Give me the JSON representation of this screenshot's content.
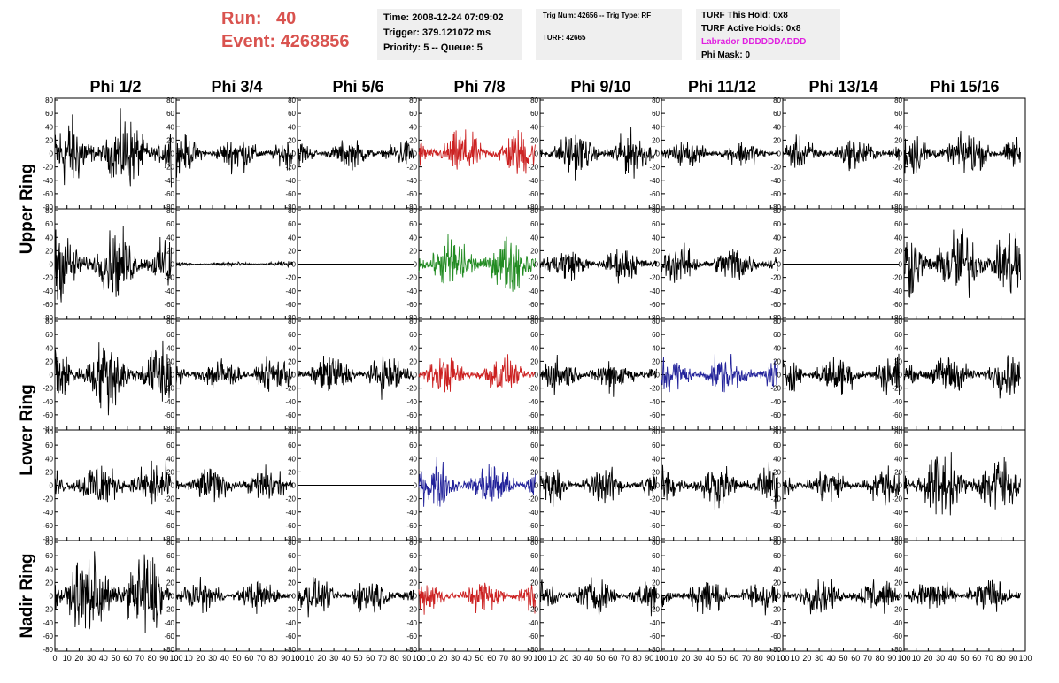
{
  "run": {
    "label": "Run:",
    "value": "40"
  },
  "event": {
    "label": "Event:",
    "value": "4268856"
  },
  "time_box": {
    "time": "Time: 2008-12-24 07:09:02",
    "trigger": "Trigger: 379.121072 ms",
    "priority": "Priority: 5 -- Queue: 5"
  },
  "trig_box": {
    "trig": "Trig Num: 42656 -- Trig Type: RF",
    "turf": "TURF: 42665"
  },
  "turf_box": {
    "this_hold": "TURF This Hold: 0x8",
    "active_holds": "TURF Active Holds: 0x8",
    "labrador": "Labrador DDDDDDADDD",
    "phi_mask": "Phi Mask: 0"
  },
  "colors": {
    "header_red": "#d9534f",
    "magenta": "#e020e0",
    "panel_bg": "#efefef"
  },
  "chart_data": {
    "type": "line",
    "columns": [
      "Phi 1/2",
      "Phi 3/4",
      "Phi 5/6",
      "Phi 7/8",
      "Phi 9/10",
      "Phi 11/12",
      "Phi 13/14",
      "Phi 15/16"
    ],
    "ring_labels": [
      {
        "label": "Upper Ring",
        "rows": [
          0,
          1
        ]
      },
      {
        "label": "Lower Ring",
        "rows": [
          2,
          3
        ]
      },
      {
        "label": "Nadir Ring",
        "rows": [
          4
        ]
      }
    ],
    "ylim": [
      -80,
      80
    ],
    "yticks": [
      -80,
      -60,
      -40,
      -20,
      0,
      20,
      40,
      60,
      80
    ],
    "xlim": [
      0,
      100
    ],
    "xticks": [
      0,
      10,
      20,
      30,
      40,
      50,
      60,
      70,
      80,
      90,
      100
    ],
    "waveform_x_range": [
      0,
      96
    ],
    "rows": [
      [
        {
          "color": "#000000",
          "amp": 28
        },
        {
          "color": "#000000",
          "amp": 14
        },
        {
          "color": "#000000",
          "amp": 11
        },
        {
          "color": "#cc2222",
          "amp": 18
        },
        {
          "color": "#000000",
          "amp": 17
        },
        {
          "color": "#000000",
          "amp": 10
        },
        {
          "color": "#000000",
          "amp": 12
        },
        {
          "color": "#000000",
          "amp": 17
        }
      ],
      [
        {
          "color": "#000000",
          "amp": 26
        },
        {
          "color": "#000000",
          "amp": 2
        },
        {
          "color": "#000000",
          "amp": 0
        },
        {
          "color": "#228b22",
          "amp": 22
        },
        {
          "color": "#000000",
          "amp": 13
        },
        {
          "color": "#000000",
          "amp": 15
        },
        {
          "color": "#000000",
          "amp": 0
        },
        {
          "color": "#000000",
          "amp": 30
        }
      ],
      [
        {
          "color": "#000000",
          "amp": 28
        },
        {
          "color": "#000000",
          "amp": 14
        },
        {
          "color": "#000000",
          "amp": 16
        },
        {
          "color": "#cc2222",
          "amp": 14
        },
        {
          "color": "#000000",
          "amp": 14
        },
        {
          "color": "#22229a",
          "amp": 15
        },
        {
          "color": "#000000",
          "amp": 16
        },
        {
          "color": "#000000",
          "amp": 16
        }
      ],
      [
        {
          "color": "#000000",
          "amp": 20
        },
        {
          "color": "#000000",
          "amp": 14
        },
        {
          "color": "#000000",
          "amp": 0
        },
        {
          "color": "#22229a",
          "amp": 18
        },
        {
          "color": "#000000",
          "amp": 14
        },
        {
          "color": "#000000",
          "amp": 16
        },
        {
          "color": "#000000",
          "amp": 14
        },
        {
          "color": "#000000",
          "amp": 26
        }
      ],
      [
        {
          "color": "#000000",
          "amp": 35
        },
        {
          "color": "#000000",
          "amp": 12
        },
        {
          "color": "#000000",
          "amp": 14
        },
        {
          "color": "#cc2222",
          "amp": 13
        },
        {
          "color": "#000000",
          "amp": 14
        },
        {
          "color": "#000000",
          "amp": 14
        },
        {
          "color": "#000000",
          "amp": 14
        },
        {
          "color": "#000000",
          "amp": 14
        }
      ]
    ]
  }
}
